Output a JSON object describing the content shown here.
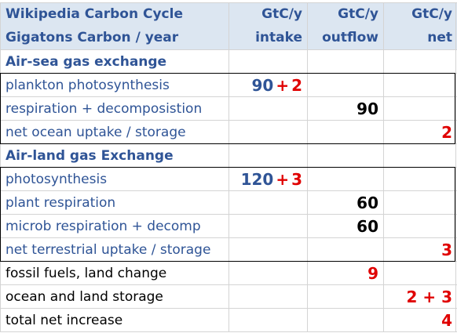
{
  "header": {
    "title_line1": "Wikipedia Carbon Cycle",
    "title_line2": "Gigatons Carbon / year",
    "col2_line1": "GtC/y",
    "col2_line2": "intake",
    "col3_line1": "GtC/y",
    "col3_line2": "outflow",
    "col4_line1": "GtC/y",
    "col4_line2": "net"
  },
  "sections": {
    "air_sea": "Air-sea gas exchange",
    "air_land": "Air-land gas Exchange"
  },
  "rows": {
    "plankton": {
      "label": "plankton photosynthesis",
      "intake_a": "90",
      "plus": "+",
      "intake_b": "2"
    },
    "respiration": {
      "label": "respiration + decomposistion",
      "outflow": "90"
    },
    "ocean_uptake": {
      "label": "net ocean uptake / storage",
      "net": "2"
    },
    "photosynthesis": {
      "label": "photosynthesis",
      "intake_a": "120",
      "plus": "+",
      "intake_b": "3"
    },
    "plant_resp": {
      "label": "plant respiration",
      "outflow": "60"
    },
    "microb": {
      "label": "microb respiration + decomp",
      "outflow": "60"
    },
    "terrestrial": {
      "label": "net terrestrial uptake / storage",
      "net": "3"
    },
    "fossil": {
      "label": "fossil fuels, land change",
      "outflow": "9"
    },
    "storage": {
      "label": "ocean and land storage",
      "net": "2 + 3"
    },
    "total": {
      "label": "total net increase",
      "net": "4"
    }
  },
  "colors": {
    "header_bg": "#dce6f1",
    "label_blue": "#2f5496",
    "value_red": "#e00000"
  }
}
